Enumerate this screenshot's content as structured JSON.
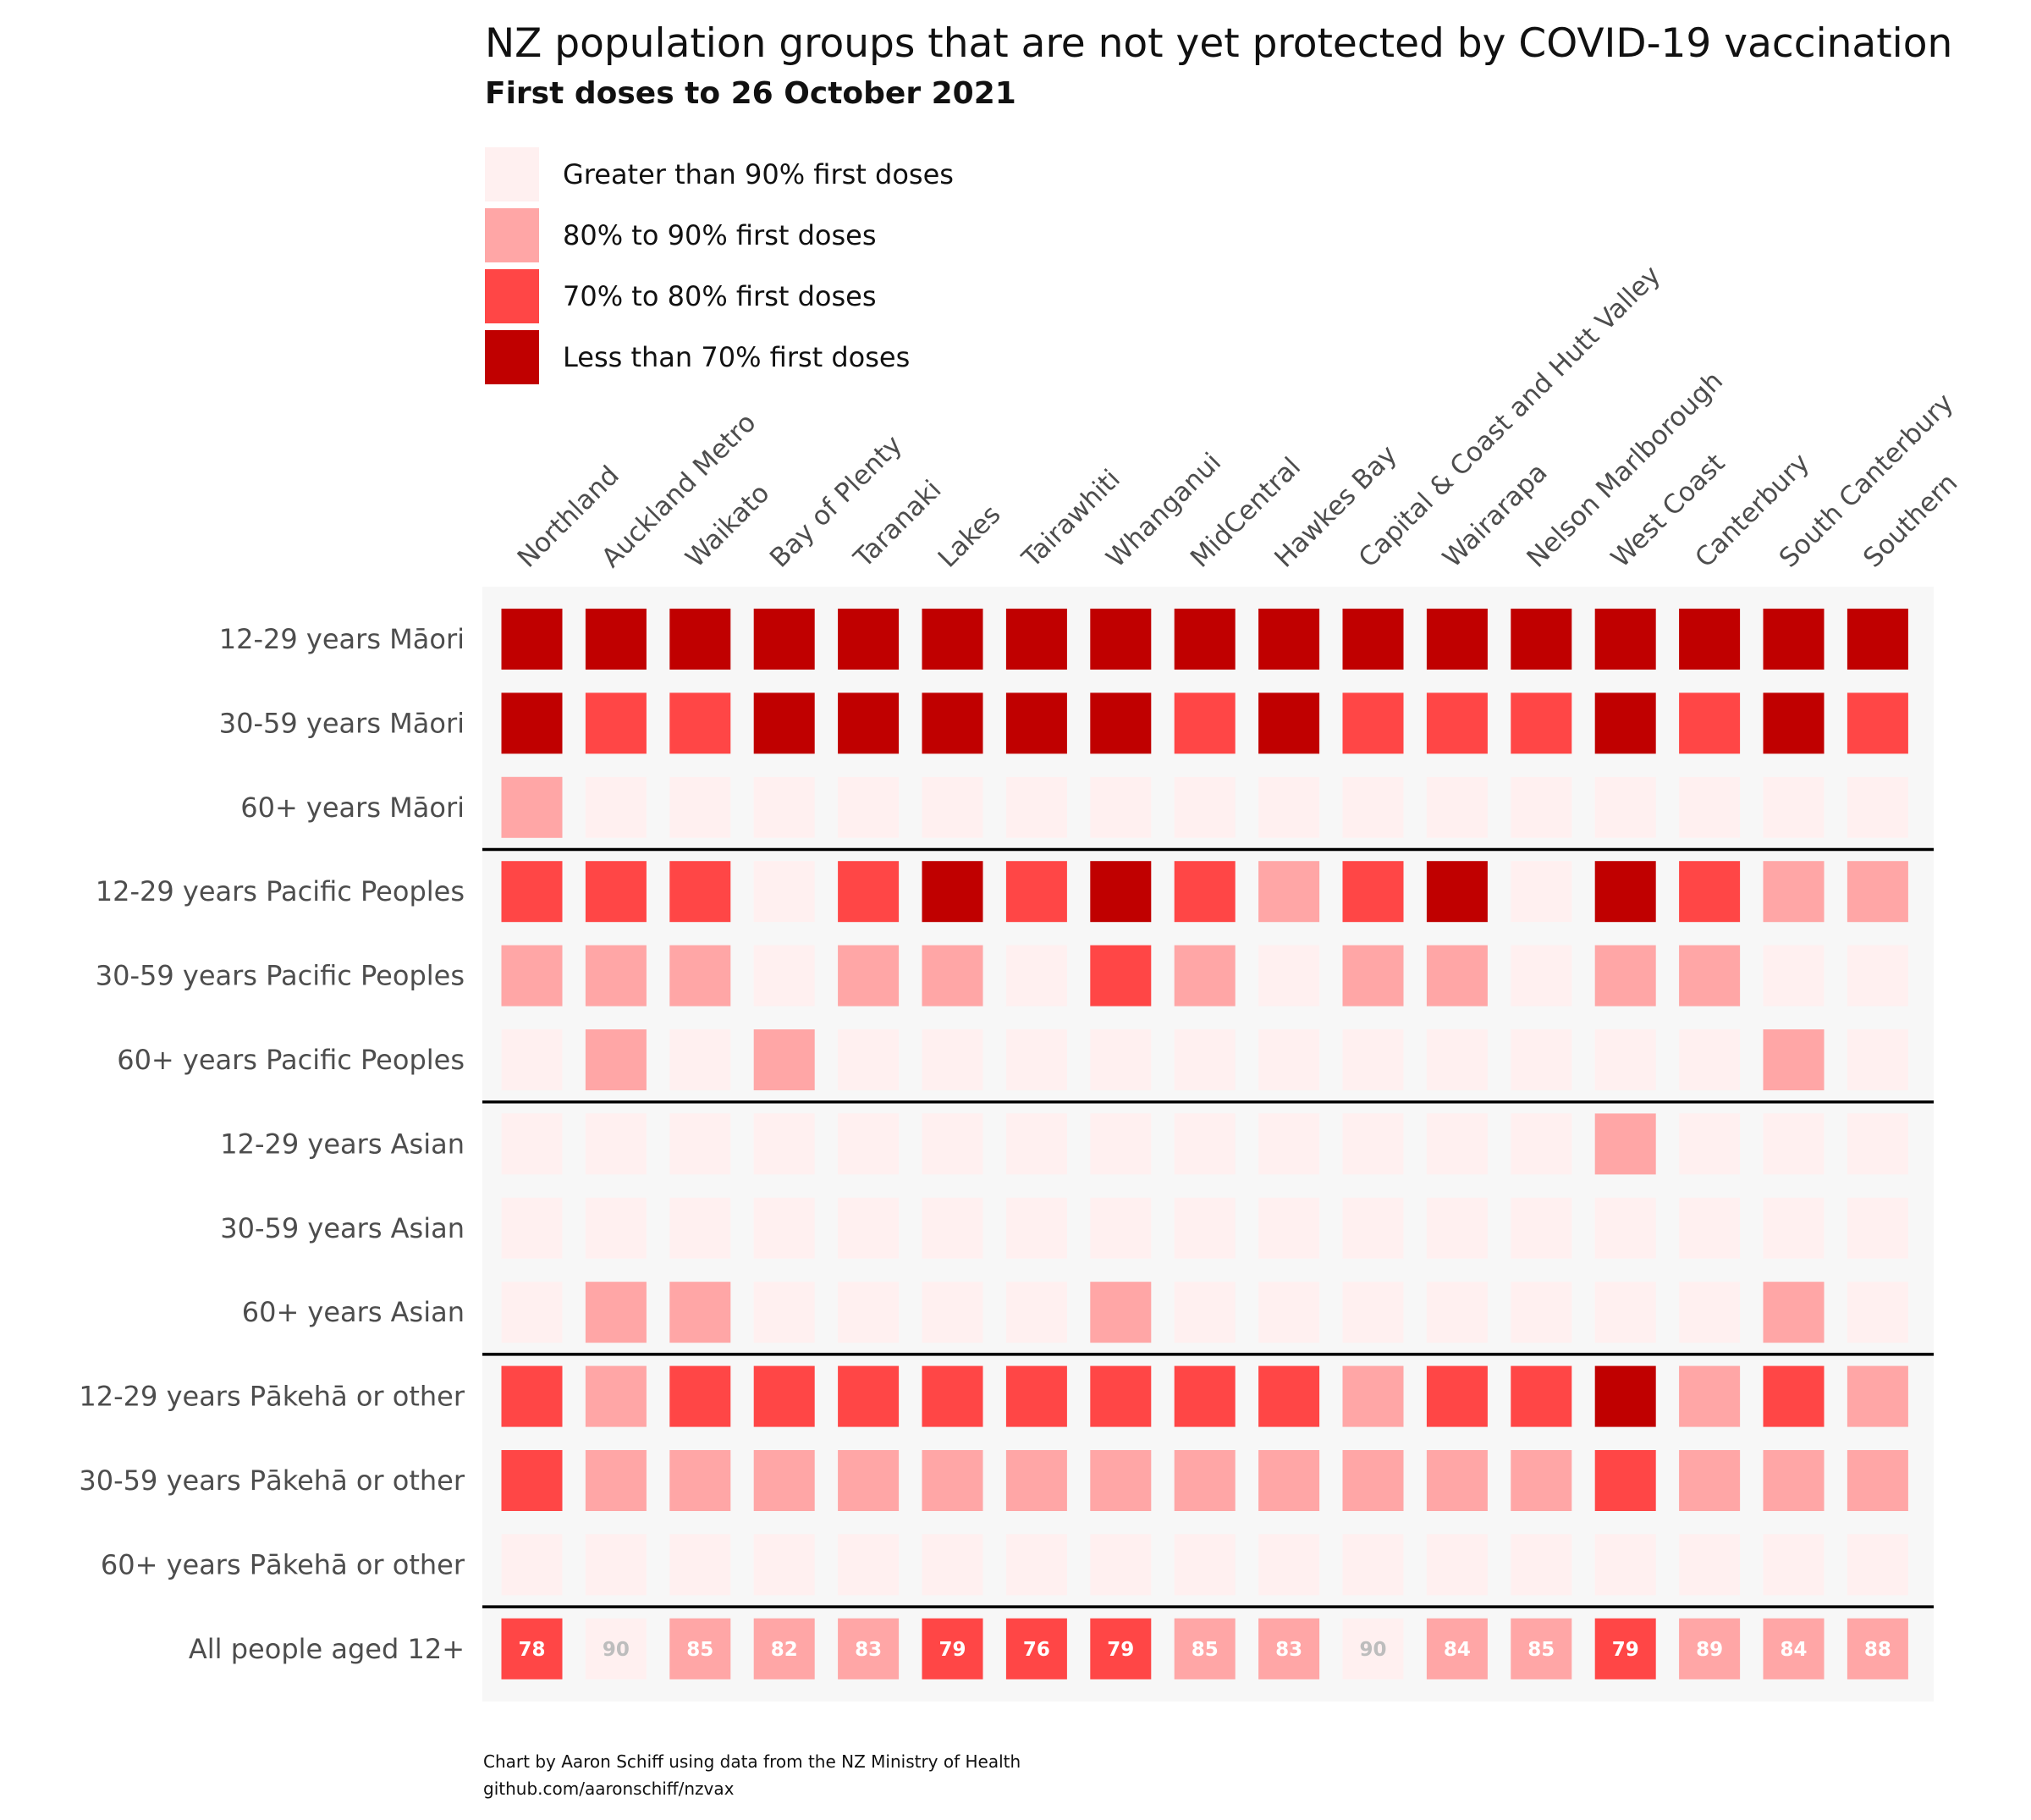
{
  "title": "NZ population groups that are not yet protected by COVID-19 vaccination",
  "subtitle": "First doses to 26 October 2021",
  "legend": [
    {
      "label": "Greater than 90% first doses",
      "color": "#fff0f0"
    },
    {
      "label": "80% to 90% first doses",
      "color": "#ffa6a6"
    },
    {
      "label": "70% to 80% first doses",
      "color": "#ff4646"
    },
    {
      "label": "Less than 70% first doses",
      "color": "#c00000"
    }
  ],
  "caption": {
    "line1": "Chart by Aaron Schiff using data from the NZ Ministry of Health",
    "line2": "github.com/aaronschiff/nzvax"
  },
  "chart_data": {
    "type": "heatmap",
    "title": "NZ population groups that are not yet protected by COVID-19 vaccination",
    "subtitle": "First doses to 26 October 2021",
    "columns": [
      "Northland",
      "Auckland Metro",
      "Waikato",
      "Bay of Plenty",
      "Taranaki",
      "Lakes",
      "Tairawhiti",
      "Whanganui",
      "MidCentral",
      "Hawkes Bay",
      "Capital & Coast and Hutt Valley",
      "Wairarapa",
      "Nelson Marlborough",
      "West Coast",
      "Canterbury",
      "South Canterbury",
      "Southern"
    ],
    "rows": [
      "12-29 years Māori",
      "30-59 years Māori",
      "60+ years Māori",
      "12-29 years Pacific Peoples",
      "30-59 years Pacific Peoples",
      "60+ years Pacific Peoples",
      "12-29 years Asian",
      "30-59 years Asian",
      "60+ years Asian",
      "12-29 years Pākehā or other",
      "30-59 years Pākehā or other",
      "60+ years Pākehā or other",
      "All people aged 12+"
    ],
    "categories_legend": [
      "Greater than 90% first doses",
      "80% to 90% first doses",
      "70% to 80% first doses",
      "Less than 70% first doses"
    ],
    "cell_category_codes": "0=Greater than 90%, 1=80% to 90%, 2=70% to 80%, 3=Less than 70%",
    "cells": [
      [
        3,
        3,
        3,
        3,
        3,
        3,
        3,
        3,
        3,
        3,
        3,
        3,
        3,
        3,
        3,
        3,
        3
      ],
      [
        3,
        2,
        2,
        3,
        3,
        3,
        3,
        3,
        2,
        3,
        2,
        2,
        2,
        3,
        2,
        3,
        2
      ],
      [
        1,
        0,
        0,
        0,
        0,
        0,
        0,
        0,
        0,
        0,
        0,
        0,
        0,
        0,
        0,
        0,
        0
      ],
      [
        2,
        2,
        2,
        0,
        2,
        3,
        2,
        3,
        2,
        1,
        2,
        3,
        0,
        3,
        2,
        1,
        1
      ],
      [
        1,
        1,
        1,
        0,
        1,
        1,
        0,
        2,
        1,
        0,
        1,
        1,
        0,
        1,
        1,
        0,
        0
      ],
      [
        0,
        1,
        0,
        1,
        0,
        0,
        0,
        0,
        0,
        0,
        0,
        0,
        0,
        0,
        0,
        1,
        0
      ],
      [
        0,
        0,
        0,
        0,
        0,
        0,
        0,
        0,
        0,
        0,
        0,
        0,
        0,
        1,
        0,
        0,
        0
      ],
      [
        0,
        0,
        0,
        0,
        0,
        0,
        0,
        0,
        0,
        0,
        0,
        0,
        0,
        0,
        0,
        0,
        0
      ],
      [
        0,
        1,
        1,
        0,
        0,
        0,
        0,
        1,
        0,
        0,
        0,
        0,
        0,
        0,
        0,
        1,
        0
      ],
      [
        2,
        1,
        2,
        2,
        2,
        2,
        2,
        2,
        2,
        2,
        1,
        2,
        2,
        3,
        1,
        2,
        1
      ],
      [
        2,
        1,
        1,
        1,
        1,
        1,
        1,
        1,
        1,
        1,
        1,
        1,
        1,
        2,
        1,
        1,
        1
      ],
      [
        0,
        0,
        0,
        0,
        0,
        0,
        0,
        0,
        0,
        0,
        0,
        0,
        0,
        0,
        0,
        0,
        0
      ],
      [
        2,
        0,
        1,
        1,
        1,
        2,
        2,
        2,
        1,
        1,
        0,
        1,
        1,
        2,
        1,
        1,
        1
      ]
    ],
    "all_people_values": [
      78,
      90,
      85,
      82,
      83,
      79,
      76,
      79,
      85,
      83,
      90,
      84,
      85,
      79,
      89,
      84,
      88
    ],
    "group_separators_after_rows": [
      3,
      6,
      9,
      12
    ],
    "colors": [
      "#fff0f0",
      "#ffa6a6",
      "#ff4646",
      "#c00000"
    ],
    "panel_background": "#f7f7f7"
  }
}
